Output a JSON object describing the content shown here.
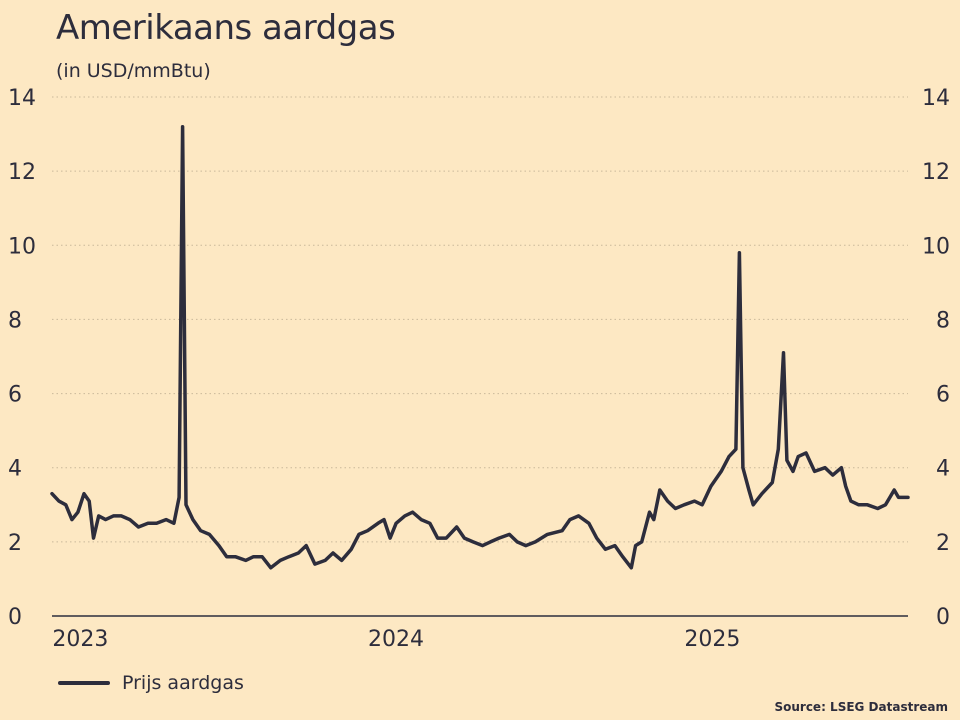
{
  "title": "Amerikaans aardgas",
  "subtitle": "(in USD/mmBtu)",
  "source": "Source: LSEG Datastream",
  "colors": {
    "background": "#fde8c3",
    "line": "#2d2d3c",
    "grid": "#c9b89a"
  },
  "chart_data": {
    "type": "line",
    "title": "Amerikaans aardgas",
    "ylabel": "(in USD/mmBtu)",
    "xlabel": "",
    "ylim": [
      0,
      14
    ],
    "yticks": [
      0,
      2,
      4,
      6,
      8,
      10,
      12,
      14
    ],
    "xlim": [
      "2022-12-20",
      "2025-09-05"
    ],
    "xtick_labels": [
      {
        "label": "2023",
        "date": "2023-01-01"
      },
      {
        "label": "2024",
        "date": "2024-01-01"
      },
      {
        "label": "2025",
        "date": "2025-01-01"
      }
    ],
    "grid": "horizontal-dotted",
    "legend_position": "bottom-left",
    "series": [
      {
        "name": "Prijs aardgas",
        "points": [
          [
            "2022-12-20",
            3.3
          ],
          [
            "2022-12-28",
            3.1
          ],
          [
            "2023-01-05",
            3.0
          ],
          [
            "2023-01-12",
            2.6
          ],
          [
            "2023-01-19",
            2.8
          ],
          [
            "2023-01-26",
            3.3
          ],
          [
            "2023-02-01",
            3.1
          ],
          [
            "2023-02-06",
            2.1
          ],
          [
            "2023-02-12",
            2.7
          ],
          [
            "2023-02-20",
            2.6
          ],
          [
            "2023-03-01",
            2.7
          ],
          [
            "2023-03-10",
            2.7
          ],
          [
            "2023-03-20",
            2.6
          ],
          [
            "2023-03-30",
            2.4
          ],
          [
            "2023-04-10",
            2.5
          ],
          [
            "2023-04-20",
            2.5
          ],
          [
            "2023-05-01",
            2.6
          ],
          [
            "2023-05-10",
            2.5
          ],
          [
            "2023-05-16",
            3.2
          ],
          [
            "2023-05-20",
            13.2
          ],
          [
            "2023-05-24",
            3.0
          ],
          [
            "2023-06-01",
            2.6
          ],
          [
            "2023-06-10",
            2.3
          ],
          [
            "2023-06-20",
            2.2
          ],
          [
            "2023-07-01",
            1.9
          ],
          [
            "2023-07-10",
            1.6
          ],
          [
            "2023-07-20",
            1.6
          ],
          [
            "2023-08-01",
            1.5
          ],
          [
            "2023-08-10",
            1.6
          ],
          [
            "2023-08-20",
            1.6
          ],
          [
            "2023-08-30",
            1.3
          ],
          [
            "2023-09-10",
            1.5
          ],
          [
            "2023-09-20",
            1.6
          ],
          [
            "2023-10-01",
            1.7
          ],
          [
            "2023-10-10",
            1.9
          ],
          [
            "2023-10-20",
            1.4
          ],
          [
            "2023-11-01",
            1.5
          ],
          [
            "2023-11-10",
            1.7
          ],
          [
            "2023-11-20",
            1.5
          ],
          [
            "2023-12-01",
            1.8
          ],
          [
            "2023-12-10",
            2.2
          ],
          [
            "2023-12-20",
            2.3
          ],
          [
            "2024-01-01",
            2.5
          ],
          [
            "2024-01-08",
            2.6
          ],
          [
            "2024-01-15",
            2.1
          ],
          [
            "2024-01-22",
            2.5
          ],
          [
            "2024-02-01",
            2.7
          ],
          [
            "2024-02-10",
            2.8
          ],
          [
            "2024-02-20",
            2.6
          ],
          [
            "2024-03-01",
            2.5
          ],
          [
            "2024-03-10",
            2.1
          ],
          [
            "2024-03-20",
            2.1
          ],
          [
            "2024-04-01",
            2.4
          ],
          [
            "2024-04-10",
            2.1
          ],
          [
            "2024-04-20",
            2.0
          ],
          [
            "2024-05-01",
            1.9
          ],
          [
            "2024-05-10",
            2.0
          ],
          [
            "2024-05-20",
            2.1
          ],
          [
            "2024-06-01",
            2.2
          ],
          [
            "2024-06-10",
            2.0
          ],
          [
            "2024-06-20",
            1.9
          ],
          [
            "2024-07-01",
            2.0
          ],
          [
            "2024-07-15",
            2.2
          ],
          [
            "2024-08-01",
            2.3
          ],
          [
            "2024-08-10",
            2.6
          ],
          [
            "2024-08-20",
            2.7
          ],
          [
            "2024-09-01",
            2.5
          ],
          [
            "2024-09-10",
            2.1
          ],
          [
            "2024-09-20",
            1.8
          ],
          [
            "2024-10-01",
            1.9
          ],
          [
            "2024-10-10",
            1.6
          ],
          [
            "2024-10-20",
            1.3
          ],
          [
            "2024-10-25",
            1.9
          ],
          [
            "2024-11-01",
            2.0
          ],
          [
            "2024-11-10",
            2.8
          ],
          [
            "2024-11-15",
            2.6
          ],
          [
            "2024-11-22",
            3.4
          ],
          [
            "2024-12-01",
            3.1
          ],
          [
            "2024-12-10",
            2.9
          ],
          [
            "2024-12-20",
            3.0
          ],
          [
            "2025-01-01",
            3.1
          ],
          [
            "2025-01-10",
            3.0
          ],
          [
            "2025-01-20",
            3.5
          ],
          [
            "2025-02-01",
            3.9
          ],
          [
            "2025-02-10",
            4.3
          ],
          [
            "2025-02-18",
            4.5
          ],
          [
            "2025-02-22",
            9.8
          ],
          [
            "2025-02-26",
            4.0
          ],
          [
            "2025-03-05",
            3.4
          ],
          [
            "2025-03-10",
            3.0
          ],
          [
            "2025-03-20",
            3.3
          ],
          [
            "2025-04-01",
            3.6
          ],
          [
            "2025-04-08",
            4.5
          ],
          [
            "2025-04-14",
            7.1
          ],
          [
            "2025-04-18",
            4.2
          ],
          [
            "2025-04-25",
            3.9
          ],
          [
            "2025-05-01",
            4.3
          ],
          [
            "2025-05-10",
            4.4
          ],
          [
            "2025-05-20",
            3.9
          ],
          [
            "2025-06-01",
            4.0
          ],
          [
            "2025-06-10",
            3.8
          ],
          [
            "2025-06-20",
            4.0
          ],
          [
            "2025-06-25",
            3.5
          ],
          [
            "2025-07-01",
            3.1
          ],
          [
            "2025-07-10",
            3.0
          ],
          [
            "2025-07-20",
            3.0
          ],
          [
            "2025-08-01",
            2.9
          ],
          [
            "2025-08-10",
            3.0
          ],
          [
            "2025-08-20",
            3.4
          ],
          [
            "2025-08-25",
            3.2
          ],
          [
            "2025-09-05",
            3.2
          ]
        ]
      }
    ]
  }
}
